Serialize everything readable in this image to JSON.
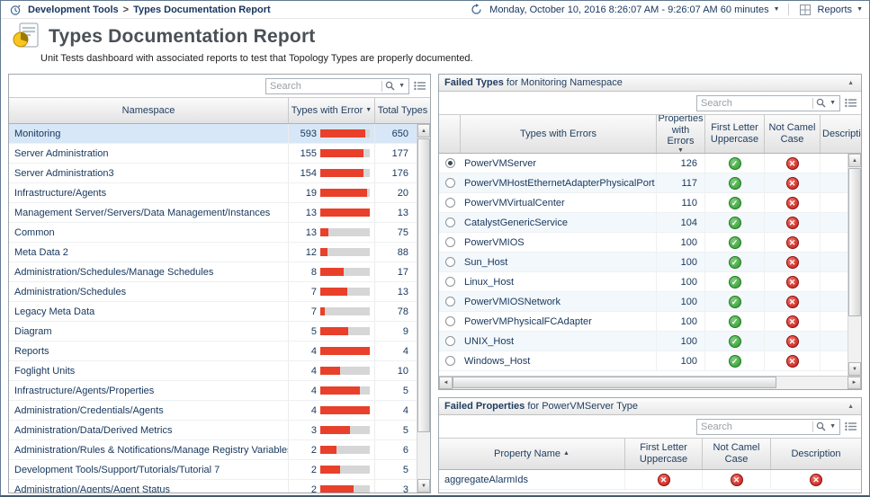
{
  "colors": {
    "bar_red": "#e8402a",
    "bar_track_gray": "#d6d6d6",
    "pass_green": "#2d9a2d",
    "fail_red": "#c41b14",
    "selection_blue": "#d7e7f7",
    "header_text_navy": "#1e3c5f"
  },
  "topbar": {
    "breadcrumb": {
      "parent": "Development Tools",
      "separator": ">",
      "current": "Types Documentation Report"
    },
    "time_range_label": "Monday, October 10, 2016 8:26:07 AM - 9:26:07 AM 60 minutes",
    "reports_label": "Reports"
  },
  "header": {
    "title": "Types Documentation Report",
    "subtitle": "Unit Tests dashboard with associated reports to test that Topology Types are properly documented."
  },
  "namespaces_panel": {
    "search_placeholder": "Search",
    "columns": {
      "namespace": "Namespace",
      "errors": "Types with Error",
      "total": "Total Types"
    },
    "sort": {
      "column": "Types with Error",
      "direction": "desc"
    },
    "selected_namespace": "Monitoring",
    "rows": [
      [
        "Monitoring",
        593,
        650
      ],
      [
        "Server Administration",
        155,
        177
      ],
      [
        "Server Administration3",
        154,
        176
      ],
      [
        "Infrastructure/Agents",
        19,
        20
      ],
      [
        "Management Server/Servers/Data Management/Instances",
        13,
        13
      ],
      [
        "Common",
        13,
        75
      ],
      [
        "Meta Data 2",
        12,
        88
      ],
      [
        "Administration/Schedules/Manage Schedules",
        8,
        17
      ],
      [
        "Administration/Schedules",
        7,
        13
      ],
      [
        "Legacy Meta Data",
        7,
        78
      ],
      [
        "Diagram",
        5,
        9
      ],
      [
        "Reports",
        4,
        4
      ],
      [
        "Foglight Units",
        4,
        10
      ],
      [
        "Infrastructure/Agents/Properties",
        4,
        5
      ],
      [
        "Administration/Credentials/Agents",
        4,
        4
      ],
      [
        "Administration/Data/Derived Metrics",
        3,
        5
      ],
      [
        "Administration/Rules & Notifications/Manage Registry Variables",
        2,
        6
      ],
      [
        "Development Tools/Support/Tutorials/Tutorial 7",
        2,
        5
      ],
      [
        "Administration/Agents/Agent Status",
        2,
        3
      ]
    ]
  },
  "failed_types_panel": {
    "title_bold": "Failed Types",
    "title_rest": "for Monitoring Namespace",
    "search_placeholder": "Search",
    "columns": {
      "types": "Types with Errors",
      "props": "Properties with Errors",
      "first": "First Letter Uppercase",
      "camel": "Not Camel Case",
      "desc": "Description"
    },
    "sort": {
      "column": "Properties with Errors",
      "direction": "desc"
    },
    "selected_type": "PowerVMServer",
    "rows": [
      {
        "name": "PowerVMServer",
        "props": 126,
        "first": "pass",
        "camel": "fail"
      },
      {
        "name": "PowerVMHostEthernetAdapterPhysicalPort",
        "props": 117,
        "first": "pass",
        "camel": "fail"
      },
      {
        "name": "PowerVMVirtualCenter",
        "props": 110,
        "first": "pass",
        "camel": "fail"
      },
      {
        "name": "CatalystGenericService",
        "props": 104,
        "first": "pass",
        "camel": "fail"
      },
      {
        "name": "PowerVMIOS",
        "props": 100,
        "first": "pass",
        "camel": "fail"
      },
      {
        "name": "Sun_Host",
        "props": 100,
        "first": "pass",
        "camel": "fail"
      },
      {
        "name": "Linux_Host",
        "props": 100,
        "first": "pass",
        "camel": "fail"
      },
      {
        "name": "PowerVMIOSNetwork",
        "props": 100,
        "first": "pass",
        "camel": "fail"
      },
      {
        "name": "PowerVMPhysicalFCAdapter",
        "props": 100,
        "first": "pass",
        "camel": "fail"
      },
      {
        "name": "UNIX_Host",
        "props": 100,
        "first": "pass",
        "camel": "fail"
      },
      {
        "name": "Windows_Host",
        "props": 100,
        "first": "pass",
        "camel": "fail"
      }
    ]
  },
  "failed_properties_panel": {
    "title_bold": "Failed Properties",
    "title_rest": "for PowerVMServer Type",
    "search_placeholder": "Search",
    "columns": {
      "name": "Property Name",
      "first": "First Letter Uppercase",
      "camel": "Not Camel Case",
      "desc": "Description"
    },
    "sort": {
      "column": "Property Name",
      "direction": "asc"
    },
    "rows": [
      {
        "name": "aggregateAlarmIds",
        "first": "fail",
        "camel": "fail",
        "desc": "fail"
      }
    ]
  }
}
